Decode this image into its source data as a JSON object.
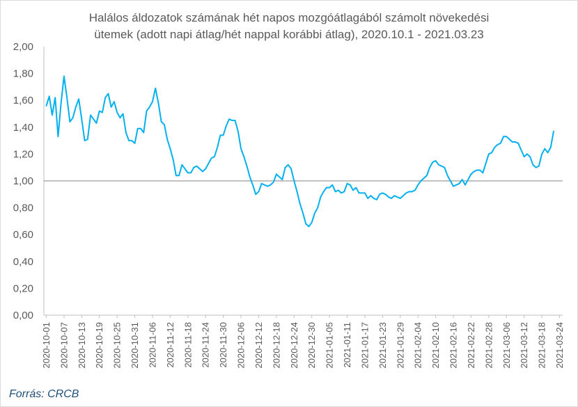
{
  "chart_data": {
    "type": "line",
    "title_line1": "Halálos áldozatok számának hét napos mozgóátlagából számolt növekedési",
    "title_line2": "ütemek (adott napi átlag/hét nappal korábbi átlag), 2020.10.1 - 2021.03.23",
    "source": "Forrás: CRCB",
    "xlabel": "",
    "ylabel": "",
    "ylim": [
      0,
      2
    ],
    "reference_line": 1.0,
    "grid": false,
    "legend": "none",
    "y_ticks": [
      "0,00",
      "0,20",
      "0,40",
      "0,60",
      "0,80",
      "1,00",
      "1,20",
      "1,40",
      "1,60",
      "1,80",
      "2,00"
    ],
    "x_ticks": [
      "2020-10-01",
      "2020-10-07",
      "2020-10-13",
      "2020-10-19",
      "2020-10-25",
      "2020-10-31",
      "2020-11-06",
      "2020-11-12",
      "2020-11-18",
      "2020-11-24",
      "2020-11-30",
      "2020-12-06",
      "2020-12-12",
      "2020-12-18",
      "2020-12-24",
      "2020-12-30",
      "2021-01-05",
      "2021-01-11",
      "2021-01-17",
      "2021-01-23",
      "2021-01-29",
      "2021-02-04",
      "2021-02-10",
      "2021-02-16",
      "2021-02-22",
      "2021-02-28",
      "2021-03-06",
      "2021-03-12",
      "2021-03-18",
      "2021-03-24"
    ],
    "series": [
      {
        "color": "#00b0f0",
        "x_start": "2020-10-01",
        "values": [
          1.56,
          1.63,
          1.49,
          1.62,
          1.33,
          1.58,
          1.78,
          1.62,
          1.44,
          1.47,
          1.55,
          1.61,
          1.46,
          1.3,
          1.31,
          1.49,
          1.46,
          1.43,
          1.52,
          1.51,
          1.62,
          1.65,
          1.55,
          1.59,
          1.51,
          1.47,
          1.5,
          1.36,
          1.3,
          1.3,
          1.28,
          1.39,
          1.39,
          1.36,
          1.52,
          1.55,
          1.59,
          1.69,
          1.58,
          1.44,
          1.42,
          1.31,
          1.24,
          1.16,
          1.04,
          1.04,
          1.12,
          1.09,
          1.06,
          1.06,
          1.1,
          1.11,
          1.09,
          1.07,
          1.09,
          1.13,
          1.17,
          1.18,
          1.25,
          1.34,
          1.34,
          1.41,
          1.46,
          1.45,
          1.45,
          1.37,
          1.24,
          1.18,
          1.11,
          1.03,
          0.97,
          0.9,
          0.92,
          0.98,
          0.97,
          0.96,
          0.97,
          0.99,
          1.05,
          1.03,
          1.01,
          1.1,
          1.12,
          1.09,
          1.0,
          0.92,
          0.83,
          0.76,
          0.68,
          0.66,
          0.69,
          0.76,
          0.8,
          0.88,
          0.92,
          0.95,
          0.95,
          0.97,
          0.92,
          0.93,
          0.91,
          0.92,
          0.98,
          0.97,
          0.93,
          0.95,
          0.91,
          0.91,
          0.91,
          0.87,
          0.89,
          0.87,
          0.86,
          0.9,
          0.91,
          0.9,
          0.88,
          0.87,
          0.89,
          0.88,
          0.87,
          0.89,
          0.91,
          0.92,
          0.92,
          0.93,
          0.97,
          1.0,
          1.02,
          1.04,
          1.1,
          1.14,
          1.15,
          1.12,
          1.11,
          1.1,
          1.04,
          1.0,
          0.96,
          0.97,
          0.98,
          1.01,
          0.97,
          1.01,
          1.05,
          1.07,
          1.08,
          1.08,
          1.06,
          1.13,
          1.2,
          1.21,
          1.25,
          1.27,
          1.28,
          1.33,
          1.33,
          1.31,
          1.29,
          1.29,
          1.28,
          1.23,
          1.18,
          1.2,
          1.18,
          1.12,
          1.1,
          1.11,
          1.2,
          1.24,
          1.21,
          1.25,
          1.37
        ]
      }
    ]
  }
}
